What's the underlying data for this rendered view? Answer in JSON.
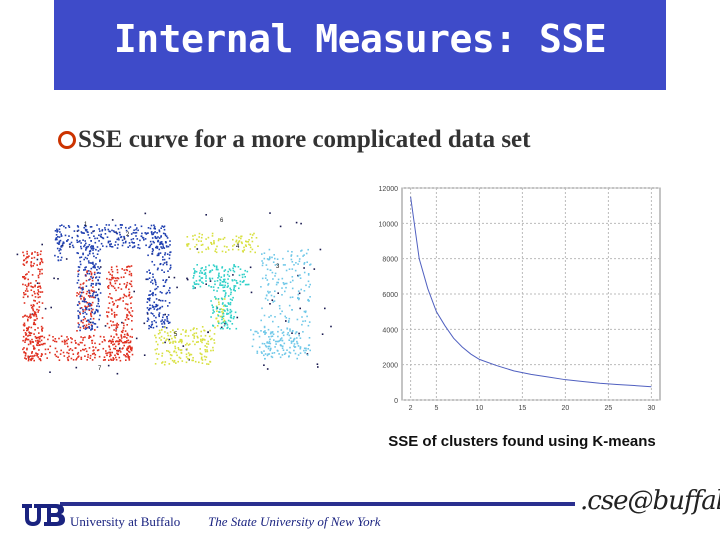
{
  "slide": {
    "title": "Internal Measures: SSE",
    "bullet": "SSE curve for a more complicated data set",
    "caption": "SSE of clusters found using K-means"
  },
  "scatter_figure": {
    "cluster_labels": [
      "1",
      "2",
      "3",
      "4",
      "5",
      "6",
      "7"
    ],
    "colors": {
      "red": "#e03020",
      "blue": "#1f3fb0",
      "cyan": "#30d0c8",
      "yellow": "#d8e040",
      "lightblue": "#70c8e8",
      "noise": "#1a1a50"
    }
  },
  "chart_data": {
    "type": "line",
    "title": "",
    "xlabel": "",
    "ylabel": "",
    "x_ticks": [
      "2",
      "5",
      "10",
      "15",
      "20",
      "25",
      "30"
    ],
    "y_ticks": [
      "0",
      "2000",
      "4000",
      "6000",
      "8000",
      "10000",
      "12000"
    ],
    "xlim": [
      1,
      31
    ],
    "ylim": [
      0,
      12000
    ],
    "grid": true,
    "series": [
      {
        "x": [
          2,
          3,
          4,
          5,
          6,
          7,
          8,
          9,
          10,
          12,
          14,
          16,
          18,
          20,
          22,
          24,
          26,
          28,
          30
        ],
        "values": [
          11500,
          8000,
          6300,
          5000,
          4200,
          3500,
          3000,
          2600,
          2300,
          1950,
          1650,
          1450,
          1300,
          1150,
          1050,
          950,
          880,
          820,
          750
        ],
        "color": "#5060c0"
      }
    ]
  },
  "footer": {
    "logo_text": "UB",
    "university": "University at Buffalo",
    "state_university": "The State University of New York",
    "cse_logo": ".cse@buffalo"
  },
  "colors": {
    "title_bar": "#3e4bc9",
    "bullet": "#cc3300",
    "footer": "#1a2380"
  }
}
